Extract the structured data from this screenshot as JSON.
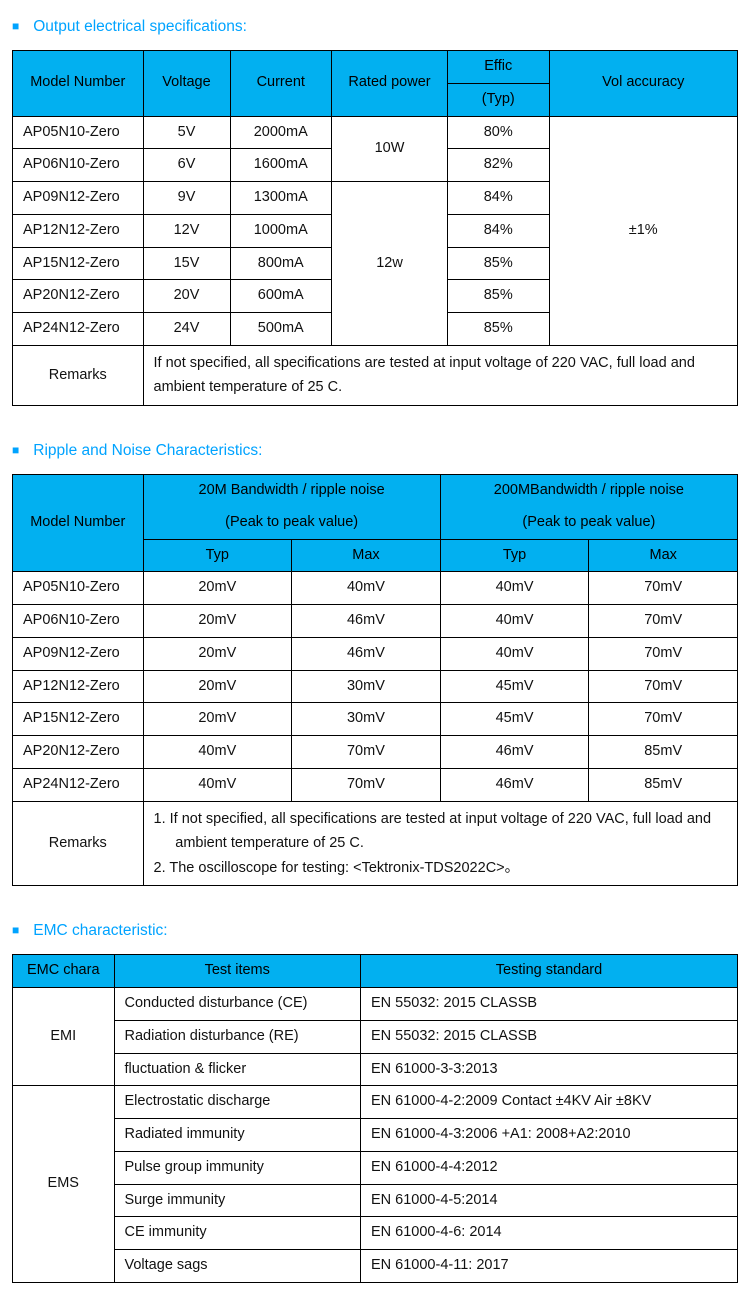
{
  "colors": {
    "header_bg": "#02b0f0",
    "accent": "#00a3ff",
    "border": "#000000",
    "text": "#111111",
    "page_bg": "#ffffff"
  },
  "typography": {
    "base_fontsize_pt": 11,
    "title_fontsize_pt": 12,
    "font_family": "Arial"
  },
  "sec1": {
    "title": "Output electrical specifications:",
    "headers": {
      "model": "Model Number",
      "voltage": "Voltage",
      "current": "Current",
      "rated_power": "Rated power",
      "effic": "Effic",
      "effic_sub": "(Typ)",
      "vol_acc": "Vol accuracy"
    },
    "rows": [
      {
        "model": "AP05N10-Zero",
        "voltage": "5V",
        "current": "2000mA",
        "effic": "80%"
      },
      {
        "model": "AP06N10-Zero",
        "voltage": "6V",
        "current": "1600mA",
        "effic": "82%"
      },
      {
        "model": "AP09N12-Zero",
        "voltage": "9V",
        "current": "1300mA",
        "effic": "84%"
      },
      {
        "model": "AP12N12-Zero",
        "voltage": "12V",
        "current": "1000mA",
        "effic": "84%"
      },
      {
        "model": "AP15N12-Zero",
        "voltage": "15V",
        "current": "800mA",
        "effic": "85%"
      },
      {
        "model": "AP20N12-Zero",
        "voltage": "20V",
        "current": "600mA",
        "effic": "85%"
      },
      {
        "model": "AP24N12-Zero",
        "voltage": "24V",
        "current": "500mA",
        "effic": "85%"
      }
    ],
    "rated_power_10w": "10W",
    "rated_power_12w": "12w",
    "vol_accuracy": "±1%",
    "remarks_label": "Remarks",
    "remarks_text": "If not specified, all specifications are tested at input voltage of 220 VAC, full load and ambient temperature of 25 C.",
    "col_widths_pct": [
      18,
      12,
      14,
      16,
      14,
      26
    ]
  },
  "sec2": {
    "title": "Ripple and Noise Characteristics:",
    "headers": {
      "model": "Model Number",
      "bw20": "20M Bandwidth / ripple noise",
      "bw200": "200MBandwidth / ripple noise",
      "peak": "(Peak to peak value)",
      "typ": "Typ",
      "max": "Max"
    },
    "rows": [
      {
        "model": "AP05N10-Zero",
        "t20": "20mV",
        "m20": "40mV",
        "t200": "40mV",
        "m200": "70mV"
      },
      {
        "model": "AP06N10-Zero",
        "t20": "20mV",
        "m20": "46mV",
        "t200": "40mV",
        "m200": "70mV"
      },
      {
        "model": "AP09N12-Zero",
        "t20": "20mV",
        "m20": "46mV",
        "t200": "40mV",
        "m200": "70mV"
      },
      {
        "model": "AP12N12-Zero",
        "t20": "20mV",
        "m20": "30mV",
        "t200": "45mV",
        "m200": "70mV"
      },
      {
        "model": "AP15N12-Zero",
        "t20": "20mV",
        "m20": "30mV",
        "t200": "45mV",
        "m200": "70mV"
      },
      {
        "model": "AP20N12-Zero",
        "t20": "40mV",
        "m20": "70mV",
        "t200": "46mV",
        "m200": "85mV"
      },
      {
        "model": "AP24N12-Zero",
        "t20": "40mV",
        "m20": "70mV",
        "t200": "46mV",
        "m200": "85mV"
      }
    ],
    "remarks_label": "Remarks",
    "remarks_1": "1.   If not specified, all specifications are tested at input voltage of 220 VAC, full load and ambient temperature of 25 C.",
    "remarks_2": "2.   The oscilloscope for testing:  <Tektronix-TDS2022C>。",
    "col_widths_pct": [
      18,
      20.5,
      20.5,
      20.5,
      20.5
    ]
  },
  "sec3": {
    "title": "EMC characteristic:",
    "headers": {
      "chara": "EMC chara",
      "items": "Test items",
      "standard": "Testing standard"
    },
    "emi_label": "EMI",
    "ems_label": "EMS",
    "emi_rows": [
      {
        "item": "Conducted disturbance  (CE)",
        "std": "EN 55032: 2015      CLASSB"
      },
      {
        "item": "Radiation disturbance (RE)",
        "std": "EN 55032: 2015      CLASSB"
      },
      {
        "item": "fluctuation & flicker",
        "std": "EN 61000-3-3:2013"
      }
    ],
    "ems_rows": [
      {
        "item": "Electrostatic discharge",
        "std": "EN 61000-4-2:2009   Contact  ±4KV   Air  ±8KV"
      },
      {
        "item": "Radiated immunity",
        "std": "EN 61000-4-3:2006 +A1: 2008+A2:2010"
      },
      {
        "item": "Pulse group immunity",
        "std": "EN 61000-4-4:2012"
      },
      {
        "item": "Surge immunity",
        "std": "EN 61000-4-5:2014"
      },
      {
        "item": "CE immunity",
        "std": "EN 61000-4-6: 2014"
      },
      {
        "item": "Voltage sags",
        "std": "EN 61000-4-11: 2017"
      }
    ],
    "col_widths_pct": [
      14,
      34,
      52
    ]
  }
}
